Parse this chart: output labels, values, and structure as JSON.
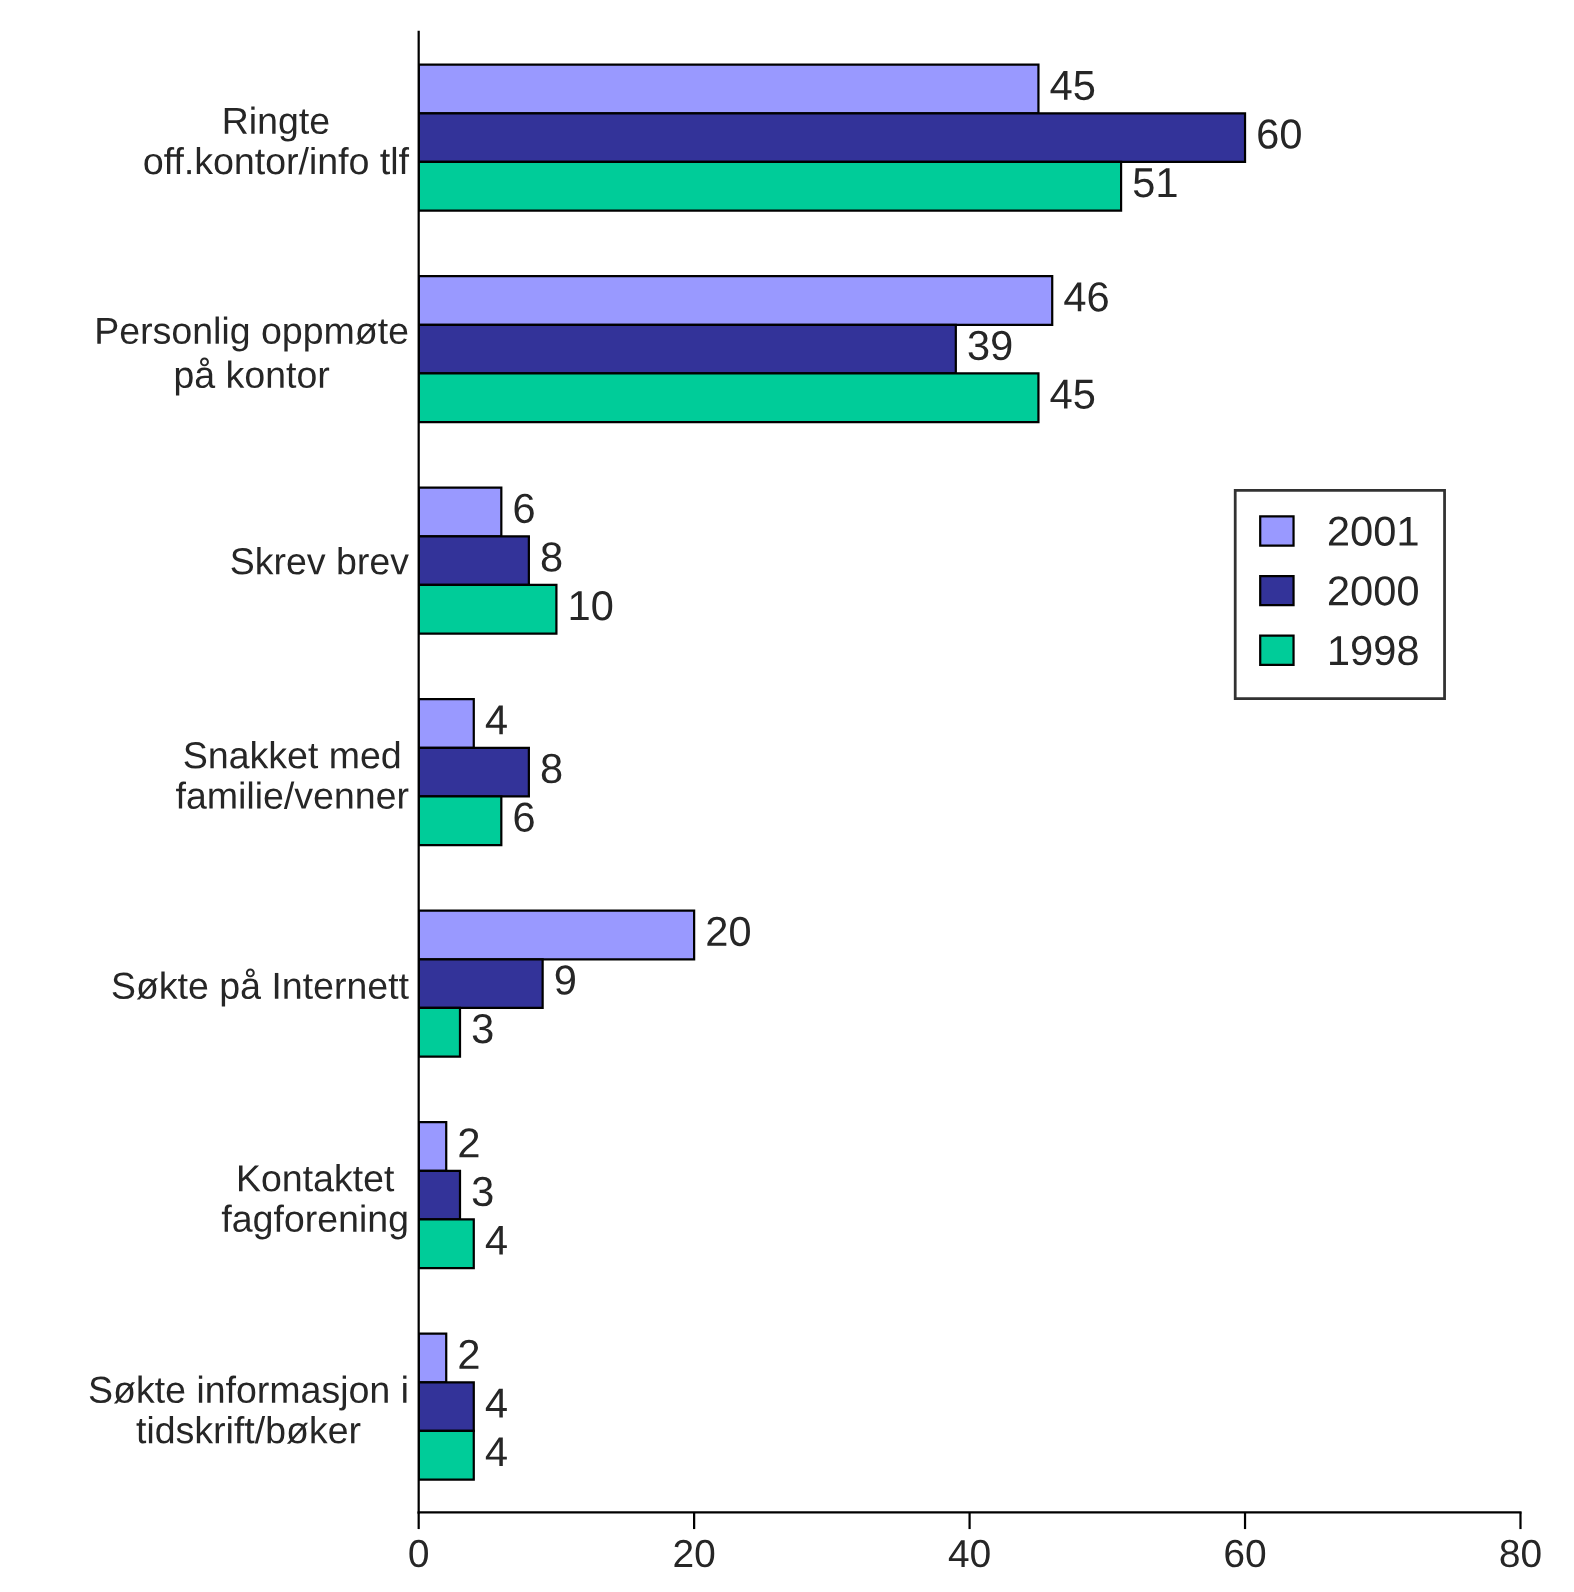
{
  "chart_data": {
    "type": "bar",
    "orientation": "horizontal",
    "categories": [
      "Ringte\noff.kontor/info tlf",
      "Personlig oppmøte\npå kontor",
      "Skrev brev",
      "Snakket med\nfamilie/venner",
      "Søkte på Internett",
      "Kontaktet\nfagforening",
      "Søkte informasjon i\ntidskrift/bøker"
    ],
    "series": [
      {
        "name": "2001",
        "color": "#9999ff",
        "values": [
          45,
          46,
          6,
          4,
          20,
          2,
          2
        ]
      },
      {
        "name": "2000",
        "color": "#333399",
        "values": [
          60,
          39,
          8,
          8,
          9,
          3,
          4
        ]
      },
      {
        "name": "1998",
        "color": "#00cc99",
        "values": [
          51,
          45,
          10,
          6,
          3,
          4,
          4
        ]
      }
    ],
    "xlim": [
      0,
      80
    ],
    "xticks": [
      0,
      20,
      40,
      60,
      80
    ],
    "data_labels": true,
    "grid": false,
    "legend": "right"
  }
}
